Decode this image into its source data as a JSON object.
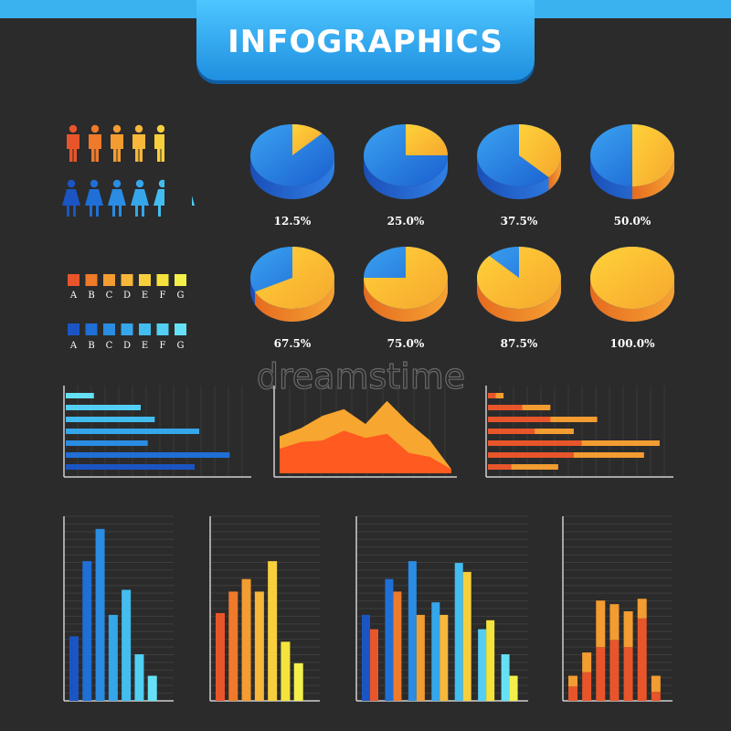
{
  "title": "INFOGRAPHICS",
  "watermark": "dreamstime",
  "colors": {
    "background": "#2b2b2b",
    "accent": "#39b2ef",
    "warm": [
      "#e8552a",
      "#ef7a2a",
      "#f39c31",
      "#f6b73a",
      "#f7cf3c",
      "#f5e33d",
      "#f3f04a"
    ],
    "cool": [
      "#1b55c4",
      "#1f6fd6",
      "#2a8ce2",
      "#36a6ea",
      "#43bdef",
      "#52cff2",
      "#66e0f5"
    ]
  },
  "people": {
    "men_icon": "man-icon",
    "women_icon": "woman-icon"
  },
  "legends": {
    "warm_letters": [
      "A",
      "B",
      "C",
      "D",
      "E",
      "F",
      "G"
    ],
    "cool_letters": [
      "A",
      "B",
      "C",
      "D",
      "E",
      "F",
      "G"
    ]
  },
  "chart_data": [
    {
      "type": "pie",
      "labels": [
        "12.5%",
        "25.0%",
        "37.5%",
        "50.0%",
        "67.5%",
        "75.0%",
        "87.5%",
        "100.0%"
      ],
      "values": [
        12.5,
        25.0,
        37.5,
        50.0,
        67.5,
        75.0,
        87.5,
        100.0
      ]
    },
    {
      "type": "bar",
      "orientation": "horizontal",
      "values": [
        12,
        32,
        38,
        57,
        35,
        70,
        55
      ]
    },
    {
      "type": "area",
      "series": [
        {
          "values": [
            45,
            55,
            70,
            78,
            60,
            88,
            62,
            40,
            5
          ]
        },
        {
          "values": [
            30,
            38,
            40,
            52,
            43,
            48,
            25,
            20,
            5
          ]
        }
      ]
    },
    {
      "type": "bar",
      "orientation": "horizontal",
      "stacked": true,
      "series": [
        {
          "values": [
            5,
            22,
            40,
            30,
            60,
            55,
            15
          ]
        },
        {
          "values": [
            10,
            40,
            70,
            55,
            110,
            100,
            45
          ]
        }
      ]
    },
    {
      "type": "bar",
      "values": [
        36,
        78,
        96,
        48,
        62,
        26,
        14
      ]
    },
    {
      "type": "bar",
      "values": [
        49,
        61,
        68,
        61,
        78,
        33,
        21
      ]
    },
    {
      "type": "bar",
      "series": [
        {
          "values": [
            48,
            68,
            78,
            55,
            77,
            40,
            26
          ]
        },
        {
          "values": [
            40,
            61,
            48,
            48,
            72,
            45,
            14
          ]
        }
      ]
    },
    {
      "type": "bar",
      "stacked": true,
      "series": [
        {
          "values": [
            8,
            16,
            30,
            34,
            30,
            46,
            5
          ]
        },
        {
          "values": [
            6,
            11,
            26,
            20,
            20,
            11,
            9
          ]
        }
      ]
    }
  ]
}
